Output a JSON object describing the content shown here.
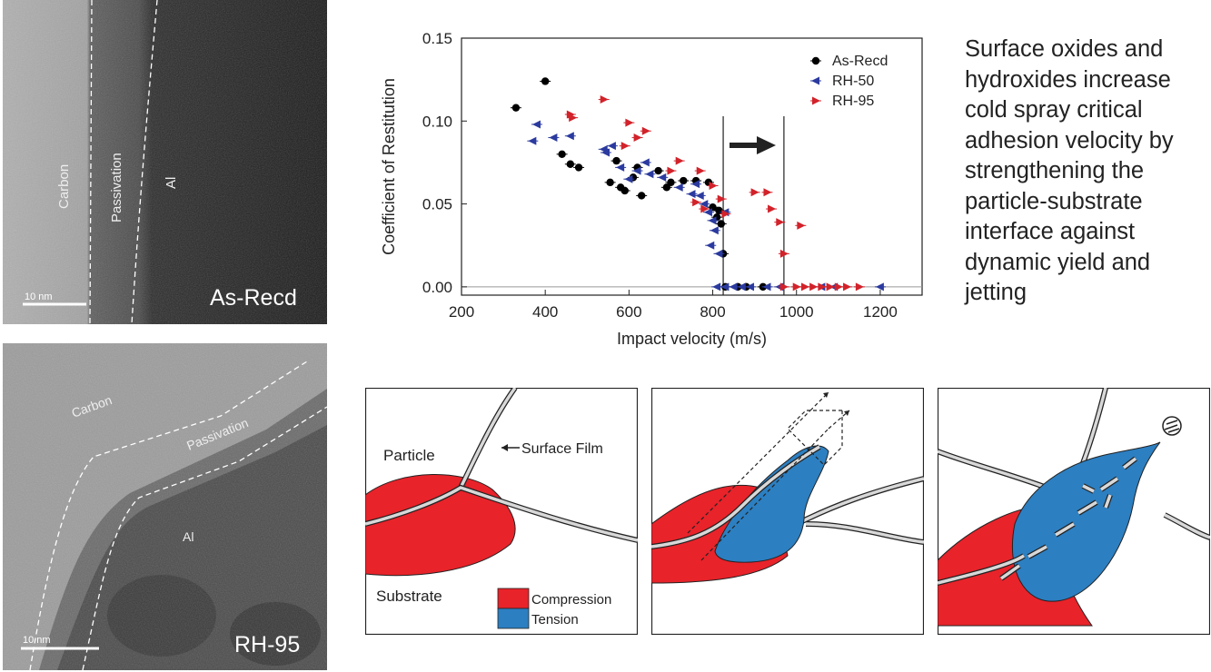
{
  "tem_top": {
    "layer_carbon": "Carbon",
    "layer_passivation": "Passivation",
    "layer_al": "Al",
    "scale": "10 nm",
    "sample": "As-Recd"
  },
  "tem_bottom": {
    "layer_carbon": "Carbon",
    "layer_passivation": "Passivation",
    "layer_al": "Al",
    "scale": "10 nm",
    "sample": "RH-95"
  },
  "summary": {
    "lines": [
      "Surface oxides and",
      "hydroxides increase",
      "cold spray critical",
      "adhesion velocity by",
      "strengthening the",
      "particle-substrate",
      "interface against",
      "dynamic yield and",
      "jetting"
    ]
  },
  "diagram": {
    "label_particle": "Particle",
    "label_surface_film": "Surface Film",
    "label_substrate": "Substrate",
    "legend_compression": "Compression",
    "legend_tension": "Tension",
    "color_compression": "#e8232a",
    "color_tension": "#2c7fc1"
  },
  "chart_data": {
    "type": "scatter",
    "xlabel": "Impact velocity (m/s)",
    "ylabel": "Coefficient of Restitution",
    "xlim": [
      200,
      1300
    ],
    "ylim": [
      -0.005,
      0.15
    ],
    "xticks": [
      200,
      400,
      600,
      800,
      1000,
      1200
    ],
    "yticks": [
      0.0,
      0.05,
      0.1,
      0.15
    ],
    "ytick_labels": [
      "0.00",
      "0.05",
      "0.10",
      "0.15"
    ],
    "legend_position": "top-right",
    "vlines": [
      825,
      970
    ],
    "series": [
      {
        "name": "As-Recd",
        "marker": "circle",
        "color": "#000000",
        "points": [
          [
            330,
            0.108
          ],
          [
            400,
            0.124
          ],
          [
            440,
            0.08
          ],
          [
            460,
            0.074
          ],
          [
            480,
            0.072
          ],
          [
            555,
            0.063
          ],
          [
            570,
            0.076
          ],
          [
            580,
            0.06
          ],
          [
            590,
            0.058
          ],
          [
            610,
            0.066
          ],
          [
            620,
            0.072
          ],
          [
            630,
            0.055
          ],
          [
            670,
            0.07
          ],
          [
            690,
            0.06
          ],
          [
            700,
            0.063
          ],
          [
            730,
            0.064
          ],
          [
            760,
            0.064
          ],
          [
            790,
            0.063
          ],
          [
            800,
            0.048
          ],
          [
            810,
            0.042
          ],
          [
            815,
            0.046
          ],
          [
            820,
            0.038
          ],
          [
            825,
            0.02
          ],
          [
            830,
            0.0
          ],
          [
            860,
            0.0
          ],
          [
            880,
            0.0
          ],
          [
            920,
            0.0
          ]
        ]
      },
      {
        "name": "RH-50",
        "marker": "triangle-left",
        "color": "#2b3a9e",
        "points": [
          [
            370,
            0.088
          ],
          [
            380,
            0.098
          ],
          [
            420,
            0.09
          ],
          [
            460,
            0.091
          ],
          [
            540,
            0.083
          ],
          [
            545,
            0.081
          ],
          [
            560,
            0.085
          ],
          [
            580,
            0.072
          ],
          [
            600,
            0.065
          ],
          [
            620,
            0.07
          ],
          [
            640,
            0.075
          ],
          [
            650,
            0.068
          ],
          [
            680,
            0.066
          ],
          [
            720,
            0.06
          ],
          [
            750,
            0.056
          ],
          [
            760,
            0.062
          ],
          [
            770,
            0.055
          ],
          [
            780,
            0.05
          ],
          [
            790,
            0.045
          ],
          [
            800,
            0.04
          ],
          [
            805,
            0.034
          ],
          [
            795,
            0.025
          ],
          [
            815,
            0.02
          ],
          [
            830,
            0.045
          ],
          [
            810,
            0.0
          ],
          [
            830,
            0.0
          ],
          [
            850,
            0.0
          ],
          [
            870,
            0.0
          ],
          [
            890,
            0.0
          ],
          [
            930,
            0.0
          ],
          [
            960,
            0.0
          ],
          [
            1060,
            0.0
          ],
          [
            1090,
            0.0
          ],
          [
            1200,
            0.0
          ]
        ]
      },
      {
        "name": "RH-95",
        "marker": "triangle-right",
        "color": "#d2222a",
        "points": [
          [
            460,
            0.104
          ],
          [
            465,
            0.102
          ],
          [
            540,
            0.113
          ],
          [
            600,
            0.099
          ],
          [
            640,
            0.094
          ],
          [
            620,
            0.09
          ],
          [
            590,
            0.085
          ],
          [
            720,
            0.076
          ],
          [
            700,
            0.07
          ],
          [
            770,
            0.07
          ],
          [
            760,
            0.051
          ],
          [
            780,
            0.047
          ],
          [
            800,
            0.061
          ],
          [
            820,
            0.053
          ],
          [
            830,
            0.044
          ],
          [
            900,
            0.057
          ],
          [
            930,
            0.057
          ],
          [
            940,
            0.047
          ],
          [
            960,
            0.039
          ],
          [
            1010,
            0.037
          ],
          [
            970,
            0.02
          ],
          [
            970,
            0.0
          ],
          [
            1000,
            0.0
          ],
          [
            1020,
            0.0
          ],
          [
            1040,
            0.0
          ],
          [
            1060,
            0.0
          ],
          [
            1080,
            0.0
          ],
          [
            1100,
            0.0
          ],
          [
            1120,
            0.0
          ],
          [
            1150,
            0.0
          ]
        ]
      }
    ]
  }
}
